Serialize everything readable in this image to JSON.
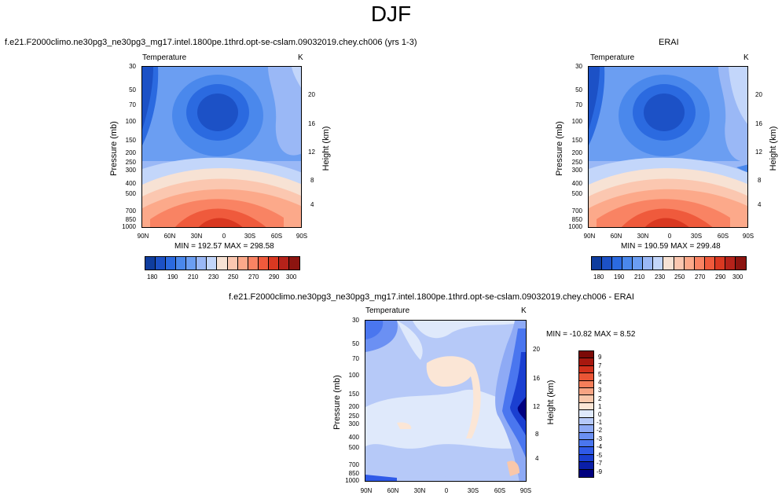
{
  "page_title": "DJF",
  "colors": {
    "temp_levels": [
      "#0f3d9e",
      "#1c51c6",
      "#2b6ae0",
      "#4a88ec",
      "#6b9ef2",
      "#9ab8f6",
      "#c3d6fa",
      "#f7e2d4",
      "#fbc7b0",
      "#fca98a",
      "#f98363",
      "#ef5a3c",
      "#d93821",
      "#b5221a",
      "#8c1410"
    ],
    "diff_levels": [
      "#00007f",
      "#0a1fa8",
      "#1a3fd1",
      "#2f5ae8",
      "#4a76ef",
      "#6b90f3",
      "#8eaaf5",
      "#b6c9f8",
      "#dfe9fb",
      "#fbe6d6",
      "#f9c7aa",
      "#f7a483",
      "#f57e5a",
      "#ea5535",
      "#d2311c",
      "#a7180f",
      "#7c0a07"
    ]
  },
  "panels": {
    "left": {
      "title": "f.e21.F2000climo.ne30pg3_ne30pg3_mg17.intel.1800pe.1thrd.opt-se-cslam.09032019.chey.ch006 (yrs 1-3)",
      "left_string": "Temperature",
      "right_string": "K",
      "stats": "MIN = 192.57  MAX = 298.58"
    },
    "right": {
      "title": "ERAI",
      "left_string": "Temperature",
      "right_string": "K",
      "stats": "MIN = 190.59  MAX = 299.48"
    },
    "diff": {
      "title": "f.e21.F2000climo.ne30pg3_ne30pg3_mg17.intel.1800pe.1thrd.opt-se-cslam.09032019.chey.ch006 - ERAI",
      "left_string": "Temperature",
      "right_string": "K",
      "stats": "MIN = -10.82  MAX =   8.52"
    }
  },
  "axes": {
    "ylabel": "Pressure (mb)",
    "y2label": "Height (km)",
    "pressure_ticks": [
      "30",
      "50",
      "70",
      "100",
      "150",
      "200",
      "250",
      "300",
      "400",
      "500",
      "700",
      "850",
      "1000"
    ],
    "height_ticks": [
      "20",
      "16",
      "12",
      "8",
      "4"
    ],
    "lat_ticks": [
      "90N",
      "60N",
      "30N",
      "0",
      "30S",
      "60S",
      "90S"
    ]
  },
  "colorbars": {
    "temp_labels": [
      "180",
      "190",
      "210",
      "230",
      "250",
      "270",
      "290",
      "300"
    ],
    "diff_labels": [
      "9",
      "7",
      "5",
      "4",
      "3",
      "2",
      "1",
      "0",
      "-1",
      "-2",
      "-3",
      "-4",
      "-5",
      "-7",
      "-9"
    ]
  },
  "chart_data": [
    {
      "type": "heatmap",
      "title": "f.e21.F2000climo.ne30pg3_ne30pg3_mg17.intel.1800pe.1thrd.opt-se-cslam.09032019.chey.ch006 (yrs 1-3)",
      "variable": "Temperature",
      "units": "K",
      "xlabel": "",
      "ylabel": "Pressure (mb)",
      "y2label": "Height (km)",
      "x": [
        "90N",
        "60N",
        "30N",
        "0",
        "30S",
        "60S",
        "90S"
      ],
      "y": [
        30,
        50,
        70,
        100,
        150,
        200,
        250,
        300,
        400,
        500,
        700,
        850,
        1000
      ],
      "y_log_scale": true,
      "min": 192.57,
      "max": 298.58
    },
    {
      "type": "heatmap",
      "title": "ERAI",
      "variable": "Temperature",
      "units": "K",
      "xlabel": "",
      "ylabel": "Pressure (mb)",
      "y2label": "Height (km)",
      "x": [
        "90N",
        "60N",
        "30N",
        "0",
        "30S",
        "60S",
        "90S"
      ],
      "y": [
        30,
        50,
        70,
        100,
        150,
        200,
        250,
        300,
        400,
        500,
        700,
        850,
        1000
      ],
      "y_log_scale": true,
      "min": 190.59,
      "max": 299.48
    },
    {
      "type": "heatmap",
      "title": "f.e21.F2000climo.ne30pg3_ne30pg3_mg17.intel.1800pe.1thrd.opt-se-cslam.09032019.chey.ch006 - ERAI",
      "variable": "Temperature",
      "units": "K",
      "xlabel": "",
      "ylabel": "Pressure (mb)",
      "y2label": "Height (km)",
      "x": [
        "90N",
        "60N",
        "30N",
        "0",
        "30S",
        "60S",
        "90S"
      ],
      "y": [
        30,
        50,
        70,
        100,
        150,
        200,
        250,
        300,
        400,
        500,
        700,
        850,
        1000
      ],
      "y_log_scale": true,
      "min": -10.82,
      "max": 8.52
    }
  ]
}
